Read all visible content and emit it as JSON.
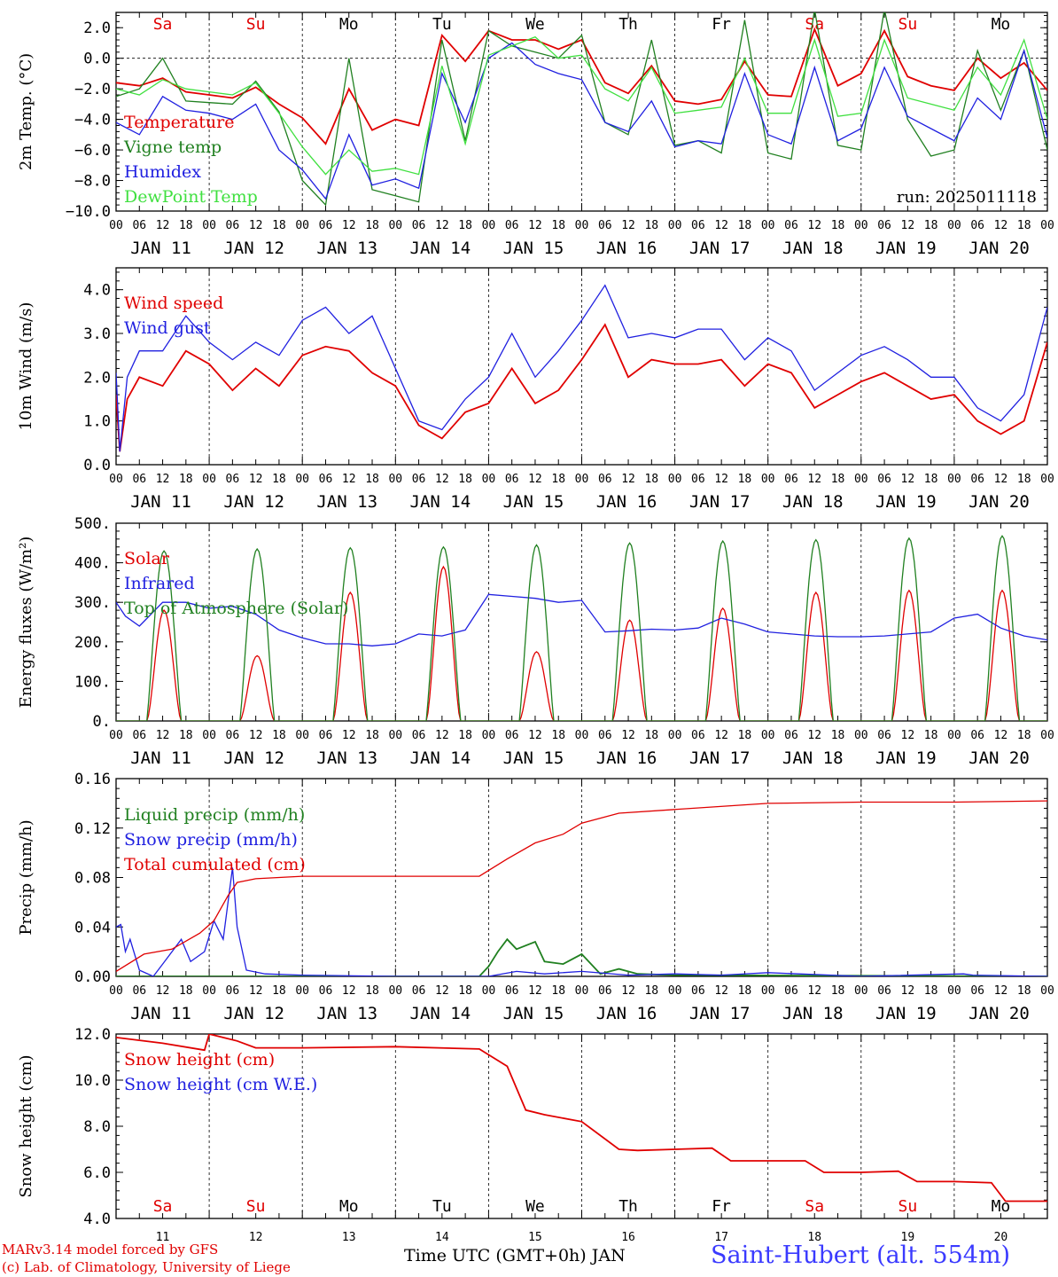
{
  "footer": {
    "model_line": "MARv3.14 model forced by GFS",
    "credit_line": "(c) Lab. of Climatology, University of Liege",
    "time_label": "Time UTC (GMT+0h) JAN",
    "station": "Saint-Hubert (alt. 554m)"
  },
  "axis_common": {
    "hour_ticks": [
      "00",
      "06",
      "12",
      "18"
    ],
    "date_labels": [
      "JAN 11",
      "JAN 12",
      "JAN 13",
      "JAN 14",
      "JAN 15",
      "JAN 16",
      "JAN 17",
      "JAN 18",
      "JAN 19",
      "JAN 20"
    ],
    "day_names": [
      "Sa",
      "Su",
      "Mo",
      "Tu",
      "We",
      "Th",
      "Fr",
      "Sa",
      "Su",
      "Mo"
    ],
    "day_name_colors": [
      "#e00000",
      "#e00000",
      "#000000",
      "#000000",
      "#000000",
      "#000000",
      "#000000",
      "#e00000",
      "#e00000",
      "#000000"
    ],
    "day_numbers": [
      "11",
      "12",
      "13",
      "14",
      "15",
      "16",
      "17",
      "18",
      "19",
      "20"
    ],
    "x_range_days": [
      0,
      10
    ]
  },
  "chart_data": [
    {
      "type": "line",
      "ylabel": "2m Temp. (°C)",
      "ylim": [
        -10,
        3
      ],
      "yticks": [
        "2.0",
        "0.0",
        "−2.0",
        "−4.0",
        "−6.0",
        "−8.0",
        "−10.0"
      ],
      "ytick_values": [
        2,
        0,
        -2,
        -4,
        -6,
        -8,
        -10
      ],
      "zero_line": true,
      "annotation": "run: 2025011118",
      "series": [
        {
          "name": "Temperature",
          "color": "#e00000",
          "x": [
            0,
            0.25,
            0.5,
            0.75,
            1,
            1.25,
            1.5,
            1.75,
            2,
            2.25,
            2.5,
            2.75,
            3,
            3.25,
            3.5,
            3.75,
            4,
            4.25,
            4.5,
            4.75,
            5,
            5.25,
            5.5,
            5.75,
            6,
            6.25,
            6.5,
            6.75,
            7,
            7.25,
            7.5,
            7.75,
            8,
            8.25,
            8.5,
            8.75,
            9,
            9.25,
            9.5,
            9.75,
            10
          ],
          "values": [
            -1.6,
            -1.8,
            -1.3,
            -2.2,
            -2.4,
            -2.6,
            -1.9,
            -3.0,
            -3.9,
            -5.6,
            -2.0,
            -4.7,
            -4.0,
            -4.4,
            1.5,
            -0.2,
            1.8,
            1.2,
            1.2,
            0.6,
            1.2,
            -1.6,
            -2.3,
            -0.5,
            -2.8,
            -3.0,
            -2.7,
            -0.2,
            -2.4,
            -2.5,
            1.9,
            -1.8,
            -1.0,
            1.8,
            -1.2,
            -1.8,
            -2.1,
            0.0,
            -1.3,
            -0.3,
            -2.1
          ]
        },
        {
          "name": "Vigne temp",
          "color": "#208020",
          "x": [
            0,
            0.25,
            0.5,
            0.75,
            1,
            1.25,
            1.5,
            1.75,
            2,
            2.25,
            2.5,
            2.75,
            3,
            3.25,
            3.5,
            3.75,
            4,
            4.25,
            4.5,
            4.75,
            5,
            5.25,
            5.5,
            5.75,
            6,
            6.25,
            6.5,
            6.75,
            7,
            7.25,
            7.5,
            7.75,
            8,
            8.25,
            8.5,
            8.75,
            9,
            9.25,
            9.5,
            9.75,
            10
          ],
          "values": [
            -2.5,
            -2.0,
            0.0,
            -2.8,
            -2.9,
            -3.0,
            -1.5,
            -3.5,
            -8.0,
            -9.6,
            0.0,
            -8.6,
            -9.0,
            -9.4,
            1.2,
            -5.4,
            1.8,
            0.8,
            0.4,
            0.0,
            1.5,
            -4.2,
            -5.0,
            1.2,
            -5.7,
            -5.4,
            -6.2,
            2.5,
            -6.2,
            -6.6,
            3.2,
            -5.7,
            -6.0,
            3.2,
            -4.0,
            -6.4,
            -6.0,
            0.5,
            -3.4,
            0.5,
            -6.0
          ]
        },
        {
          "name": "Humidex",
          "color": "#2020e0",
          "x": [
            0,
            0.25,
            0.5,
            0.75,
            1,
            1.25,
            1.5,
            1.75,
            2,
            2.25,
            2.5,
            2.75,
            3,
            3.25,
            3.5,
            3.75,
            4,
            4.25,
            4.5,
            4.75,
            5,
            5.25,
            5.5,
            5.75,
            6,
            6.25,
            6.5,
            6.75,
            7,
            7.25,
            7.5,
            7.75,
            8,
            8.25,
            8.5,
            8.75,
            9,
            9.25,
            9.5,
            9.75,
            10
          ],
          "values": [
            -4.2,
            -5.0,
            -2.5,
            -3.4,
            -3.6,
            -4.0,
            -3.0,
            -6.0,
            -7.3,
            -9.2,
            -5.0,
            -8.3,
            -7.9,
            -8.5,
            -1.0,
            -4.2,
            0.0,
            1.0,
            -0.4,
            -1.0,
            -1.4,
            -4.2,
            -4.8,
            -2.8,
            -5.8,
            -5.4,
            -5.6,
            -1.0,
            -5.0,
            -5.6,
            -0.6,
            -5.4,
            -4.6,
            -0.6,
            -3.8,
            -4.6,
            -5.4,
            -2.6,
            -4.0,
            0.5,
            -5.2
          ]
        },
        {
          "name": "DewPoint Temp",
          "color": "#40e040",
          "x": [
            0,
            0.25,
            0.5,
            0.75,
            1,
            1.25,
            1.5,
            1.75,
            2,
            2.25,
            2.5,
            2.75,
            3,
            3.25,
            3.5,
            3.75,
            4,
            4.25,
            4.5,
            4.75,
            5,
            5.25,
            5.5,
            5.75,
            6,
            6.25,
            6.5,
            6.75,
            7,
            7.25,
            7.5,
            7.75,
            8,
            8.25,
            8.5,
            8.75,
            9,
            9.25,
            9.5,
            9.75,
            10
          ],
          "values": [
            -2.0,
            -2.4,
            -1.4,
            -2.0,
            -2.2,
            -2.4,
            -1.6,
            -3.6,
            -5.8,
            -7.6,
            -6.0,
            -7.4,
            -7.2,
            -7.6,
            -0.5,
            -5.6,
            0.2,
            0.8,
            1.4,
            0.0,
            0.2,
            -2.0,
            -2.8,
            -0.6,
            -3.6,
            -3.4,
            -3.2,
            0.0,
            -3.6,
            -3.6,
            1.2,
            -3.8,
            -3.6,
            1.2,
            -2.6,
            -3.0,
            -3.4,
            -0.6,
            -2.4,
            1.2,
            -4.0
          ]
        }
      ]
    },
    {
      "type": "line",
      "ylabel": "10m Wind (m/s)",
      "ylim": [
        0,
        4.5
      ],
      "yticks": [
        "4.0",
        "3.0",
        "2.0",
        "1.0",
        "0.0"
      ],
      "ytick_values": [
        4,
        3,
        2,
        1,
        0
      ],
      "series": [
        {
          "name": "Wind speed",
          "color": "#e00000",
          "x": [
            0,
            0.04,
            0.12,
            0.25,
            0.5,
            0.75,
            1,
            1.25,
            1.5,
            1.75,
            2,
            2.25,
            2.5,
            2.75,
            3,
            3.25,
            3.5,
            3.75,
            4,
            4.25,
            4.5,
            4.75,
            5,
            5.25,
            5.5,
            5.75,
            6,
            6.25,
            6.5,
            6.75,
            7,
            7.25,
            7.5,
            7.75,
            8,
            8.25,
            8.5,
            8.75,
            9,
            9.25,
            9.5,
            9.75,
            10
          ],
          "values": [
            1.6,
            0.3,
            1.5,
            2.0,
            1.8,
            2.6,
            2.3,
            1.7,
            2.2,
            1.8,
            2.5,
            2.7,
            2.6,
            2.1,
            1.8,
            0.9,
            0.6,
            1.2,
            1.4,
            2.2,
            1.4,
            1.7,
            2.4,
            3.2,
            2.0,
            2.4,
            2.3,
            2.3,
            2.4,
            1.8,
            2.3,
            2.1,
            1.3,
            1.6,
            1.9,
            2.1,
            1.8,
            1.5,
            1.6,
            1.0,
            0.7,
            1.0,
            2.8
          ]
        },
        {
          "name": "Wind gust",
          "color": "#2020e0",
          "x": [
            0,
            0.04,
            0.12,
            0.25,
            0.5,
            0.75,
            1,
            1.25,
            1.5,
            1.75,
            2,
            2.25,
            2.5,
            2.75,
            3,
            3.25,
            3.5,
            3.75,
            4,
            4.25,
            4.5,
            4.75,
            5,
            5.25,
            5.5,
            5.75,
            6,
            6.25,
            6.5,
            6.75,
            7,
            7.25,
            7.5,
            7.75,
            8,
            8.25,
            8.5,
            8.75,
            9,
            9.25,
            9.5,
            9.75,
            10
          ],
          "values": [
            2.1,
            0.3,
            2.0,
            2.6,
            2.6,
            3.4,
            2.8,
            2.4,
            2.8,
            2.5,
            3.3,
            3.6,
            3.0,
            3.4,
            2.2,
            1.0,
            0.8,
            1.5,
            2.0,
            3.0,
            2.0,
            2.6,
            3.3,
            4.1,
            2.9,
            3.0,
            2.9,
            3.1,
            3.1,
            2.4,
            2.9,
            2.6,
            1.7,
            2.1,
            2.5,
            2.7,
            2.4,
            2.0,
            2.0,
            1.3,
            1.0,
            1.6,
            3.6
          ]
        }
      ]
    },
    {
      "type": "line",
      "ylabel": "Energy fluxes (W/m²)",
      "ylim": [
        0,
        500
      ],
      "yticks": [
        "500.",
        "400.",
        "300.",
        "200.",
        "100.",
        "0."
      ],
      "ytick_values": [
        500,
        400,
        300,
        200,
        100,
        0
      ],
      "series": [
        {
          "name": "Solar",
          "color": "#e00000",
          "peaks": [
            280,
            165,
            325,
            390,
            175,
            255,
            285,
            325,
            330,
            330
          ]
        },
        {
          "name": "Infrared",
          "color": "#2020e0",
          "x": [
            0,
            0.1,
            0.25,
            0.5,
            0.75,
            1,
            1.25,
            1.5,
            1.75,
            2,
            2.25,
            2.5,
            2.75,
            3,
            3.25,
            3.5,
            3.75,
            4,
            4.25,
            4.5,
            4.75,
            5,
            5.25,
            5.5,
            5.75,
            6,
            6.25,
            6.5,
            6.75,
            7,
            7.25,
            7.5,
            7.75,
            8,
            8.25,
            8.5,
            8.75,
            9,
            9.25,
            9.5,
            9.75,
            10
          ],
          "values": [
            300,
            265,
            240,
            300,
            300,
            285,
            290,
            270,
            230,
            210,
            195,
            195,
            190,
            195,
            220,
            215,
            230,
            320,
            315,
            310,
            300,
            305,
            225,
            228,
            232,
            230,
            235,
            260,
            245,
            225,
            220,
            215,
            213,
            213,
            215,
            220,
            225,
            260,
            270,
            235,
            215,
            205
          ]
        },
        {
          "name": "Top of Atmosphere (Solar)",
          "color": "#208020",
          "peaks": [
            430,
            435,
            438,
            440,
            445,
            450,
            455,
            458,
            462,
            468
          ]
        }
      ]
    },
    {
      "type": "line",
      "ylabel": "Precip (mm/h)",
      "ylim": [
        0,
        0.16
      ],
      "yticks": [
        "0.16",
        "0.12",
        "0.08",
        "0.04",
        "0.00"
      ],
      "ytick_values": [
        0.16,
        0.12,
        0.08,
        0.04,
        0.0
      ],
      "series": [
        {
          "name": "Liquid precip (mm/h)",
          "color": "#208020",
          "x": [
            0,
            3.9,
            4.0,
            4.1,
            4.2,
            4.3,
            4.5,
            4.6,
            4.8,
            5.0,
            5.2,
            5.4,
            5.6,
            6,
            10
          ],
          "values": [
            0,
            0,
            0.008,
            0.02,
            0.03,
            0.022,
            0.028,
            0.012,
            0.01,
            0.018,
            0.002,
            0.006,
            0.002,
            0.001,
            0
          ]
        },
        {
          "name": "Snow precip (mm/h)",
          "color": "#2020e0",
          "x": [
            0,
            0.05,
            0.1,
            0.15,
            0.25,
            0.4,
            0.5,
            0.7,
            0.8,
            0.95,
            1.05,
            1.15,
            1.25,
            1.3,
            1.4,
            1.6,
            2,
            3,
            4,
            4.3,
            4.6,
            5,
            5.5,
            6,
            6.5,
            7,
            8,
            9.1,
            9.2,
            10
          ],
          "values": [
            0.04,
            0.042,
            0.02,
            0.03,
            0.005,
            0.0,
            0.01,
            0.03,
            0.012,
            0.02,
            0.045,
            0.03,
            0.088,
            0.04,
            0.005,
            0.002,
            0.001,
            0,
            0,
            0.004,
            0.002,
            0.004,
            0.001,
            0.002,
            0.001,
            0.003,
            0,
            0.002,
            0.001,
            0
          ]
        },
        {
          "name": "Total cumulated (cm)",
          "color": "#e00000",
          "x": [
            0,
            0.3,
            0.6,
            0.9,
            1.05,
            1.2,
            1.3,
            1.5,
            2,
            3,
            3.9,
            4.2,
            4.5,
            4.8,
            5,
            5.4,
            6,
            7,
            8,
            9,
            10
          ],
          "values": [
            0.004,
            0.018,
            0.022,
            0.035,
            0.045,
            0.065,
            0.076,
            0.079,
            0.081,
            0.081,
            0.081,
            0.095,
            0.108,
            0.115,
            0.124,
            0.132,
            0.135,
            0.14,
            0.141,
            0.141,
            0.142
          ]
        }
      ]
    },
    {
      "type": "line",
      "ylabel": "Snow height (cm)",
      "ylim": [
        4,
        12
      ],
      "yticks": [
        "12.0",
        "10.0",
        "8.0",
        "6.0",
        "4.0"
      ],
      "ytick_values": [
        12,
        10,
        8,
        6,
        4
      ],
      "series": [
        {
          "name": "Snow height (cm)",
          "color": "#e00000",
          "x": [
            0,
            0.5,
            0.95,
            1.0,
            1.3,
            1.5,
            2,
            3,
            3.9,
            4.2,
            4.4,
            4.6,
            5.0,
            5.4,
            5.6,
            6,
            6.4,
            6.6,
            7.0,
            7.4,
            7.6,
            8.0,
            8.4,
            8.6,
            9.0,
            9.4,
            9.55,
            10
          ],
          "values": [
            11.85,
            11.6,
            11.3,
            12.0,
            11.7,
            11.4,
            11.4,
            11.45,
            11.35,
            10.6,
            8.7,
            8.5,
            8.2,
            7.0,
            6.95,
            7.0,
            7.05,
            6.5,
            6.5,
            6.5,
            6.0,
            6.0,
            6.05,
            5.6,
            5.6,
            5.55,
            4.75,
            4.75
          ]
        },
        {
          "name": "Snow height (cm W.E.)",
          "color": "#2020e0",
          "x": [],
          "values": []
        }
      ]
    }
  ]
}
